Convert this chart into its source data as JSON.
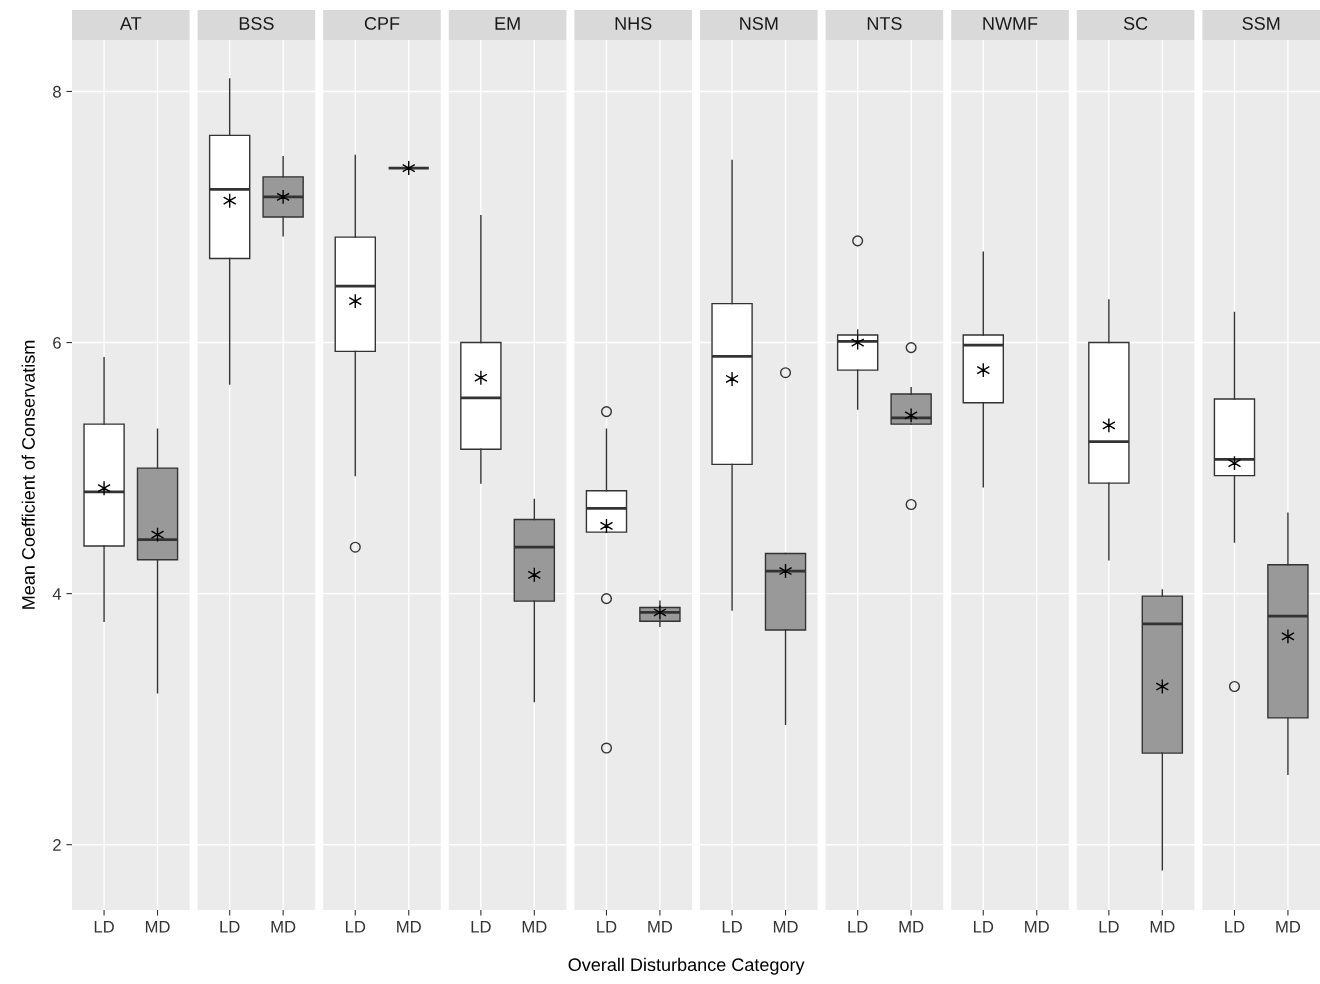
{
  "chart_data": [
    {
      "type": "box",
      "title": "AT",
      "ylabel": "Mean Coefficient of Conservatism",
      "categories": [
        "LD",
        "MD"
      ],
      "colors": [
        "#ffffff",
        "#999999"
      ],
      "ylim": [
        1.48,
        8.41
      ],
      "yticks": [
        2,
        4,
        6,
        8
      ],
      "grid": true,
      "marker": "star",
      "boxes": [
        {
          "low": 3.78,
          "q1": 4.38,
          "median": 4.81,
          "q3": 5.35,
          "high": 5.88,
          "mean": 4.84
        },
        {
          "low": 3.21,
          "q1": 4.27,
          "median": 4.43,
          "q3": 5.0,
          "high": 5.31,
          "mean": 4.47
        }
      ]
    },
    {
      "type": "box",
      "title": "BSS",
      "categories": [
        "LD",
        "MD"
      ],
      "colors": [
        "#ffffff",
        "#999999"
      ],
      "ylim": [
        1.48,
        8.41
      ],
      "yticks": [
        2,
        4,
        6,
        8
      ],
      "tick_labels": "x",
      "grid": true,
      "marker": "star",
      "boxes": [
        {
          "low": 5.67,
          "q1": 6.67,
          "median": 7.22,
          "q3": 7.65,
          "high": 8.1,
          "mean": 7.13
        },
        {
          "low": 6.85,
          "q1": 7.0,
          "median": 7.16,
          "q3": 7.32,
          "high": 7.48,
          "mean": 7.16
        }
      ]
    },
    {
      "type": "box",
      "title": "CPF",
      "categories": [
        "LD",
        "MD"
      ],
      "colors": [
        "#ffffff",
        "#999999"
      ],
      "ylim": [
        1.48,
        8.41
      ],
      "yticks": [
        2,
        4,
        6,
        8
      ],
      "tick_labels": "x",
      "grid": true,
      "marker": "star",
      "boxes": [
        {
          "low": 4.94,
          "q1": 5.93,
          "median": 6.45,
          "q3": 6.84,
          "high": 7.49,
          "mean": 6.33,
          "outliers": [
            4.37
          ]
        },
        {
          "low": 7.39,
          "q1": 7.39,
          "median": 7.39,
          "q3": 7.39,
          "high": 7.39,
          "mean": 7.39
        }
      ]
    },
    {
      "type": "box",
      "title": "EM",
      "categories": [
        "LD",
        "MD"
      ],
      "colors": [
        "#ffffff",
        "#999999"
      ],
      "ylim": [
        1.48,
        8.41
      ],
      "yticks": [
        2,
        4,
        6,
        8
      ],
      "tick_labels": "x",
      "grid": true,
      "marker": "star",
      "boxes": [
        {
          "low": 4.88,
          "q1": 5.15,
          "median": 5.56,
          "q3": 6.0,
          "high": 7.01,
          "mean": 5.72
        },
        {
          "low": 3.14,
          "q1": 3.94,
          "median": 4.37,
          "q3": 4.59,
          "high": 4.75,
          "mean": 4.15
        }
      ]
    },
    {
      "type": "box",
      "title": "NHS",
      "xlabel": "Overall Disturbance Category",
      "categories": [
        "LD",
        "MD"
      ],
      "colors": [
        "#ffffff",
        "#999999"
      ],
      "ylim": [
        1.48,
        8.41
      ],
      "yticks": [
        2,
        4,
        6,
        8
      ],
      "tick_labels": "x",
      "grid": true,
      "marker": "star",
      "boxes": [
        {
          "low": 4.49,
          "q1": 4.49,
          "median": 4.68,
          "q3": 4.82,
          "high": 5.31,
          "mean": 4.54,
          "outliers": [
            5.45,
            3.96,
            2.77
          ]
        },
        {
          "low": 3.74,
          "q1": 3.78,
          "median": 3.85,
          "q3": 3.89,
          "high": 3.94,
          "mean": 3.85
        }
      ]
    },
    {
      "type": "box",
      "title": "NSM",
      "categories": [
        "LD",
        "MD"
      ],
      "colors": [
        "#ffffff",
        "#999999"
      ],
      "ylim": [
        1.48,
        8.41
      ],
      "yticks": [
        2,
        4,
        6,
        8
      ],
      "tick_labels": "x",
      "grid": true,
      "marker": "star",
      "boxes": [
        {
          "low": 3.87,
          "q1": 5.03,
          "median": 5.89,
          "q3": 6.31,
          "high": 7.45,
          "mean": 5.71
        },
        {
          "low": 2.96,
          "q1": 3.71,
          "median": 4.18,
          "q3": 4.32,
          "high": 4.32,
          "mean": 4.18,
          "outliers": [
            5.76
          ]
        }
      ]
    },
    {
      "type": "box",
      "title": "NTS",
      "categories": [
        "LD",
        "MD"
      ],
      "colors": [
        "#ffffff",
        "#999999"
      ],
      "ylim": [
        1.48,
        8.41
      ],
      "yticks": [
        2,
        4,
        6,
        8
      ],
      "tick_labels": "x",
      "grid": true,
      "marker": "star",
      "boxes": [
        {
          "low": 5.47,
          "q1": 5.78,
          "median": 6.01,
          "q3": 6.06,
          "high": 6.1,
          "mean": 6.0,
          "outliers": [
            6.81
          ]
        },
        {
          "low": 5.35,
          "q1": 5.35,
          "median": 5.4,
          "q3": 5.59,
          "high": 5.64,
          "mean": 5.42,
          "outliers": [
            5.96,
            4.71
          ]
        }
      ]
    },
    {
      "type": "box",
      "title": "NWMF",
      "categories": [
        "LD",
        "MD"
      ],
      "colors": [
        "#ffffff",
        "#999999"
      ],
      "ylim": [
        1.48,
        8.41
      ],
      "yticks": [
        2,
        4,
        6,
        8
      ],
      "tick_labels": "x",
      "grid": true,
      "marker": "star",
      "boxes": [
        {
          "low": 4.85,
          "q1": 5.52,
          "median": 5.98,
          "q3": 6.06,
          "high": 6.72,
          "mean": 5.78
        },
        null
      ]
    },
    {
      "type": "box",
      "title": "SC",
      "categories": [
        "LD",
        "MD"
      ],
      "colors": [
        "#ffffff",
        "#999999"
      ],
      "ylim": [
        1.48,
        8.41
      ],
      "yticks": [
        2,
        4,
        6,
        8
      ],
      "tick_labels": "x",
      "grid": true,
      "marker": "star",
      "boxes": [
        {
          "low": 4.27,
          "q1": 4.88,
          "median": 5.21,
          "q3": 6.0,
          "high": 6.34,
          "mean": 5.34
        },
        {
          "low": 1.8,
          "q1": 2.73,
          "median": 3.76,
          "q3": 3.98,
          "high": 4.03,
          "mean": 3.26
        }
      ]
    },
    {
      "type": "box",
      "title": "SSM",
      "categories": [
        "LD",
        "MD"
      ],
      "colors": [
        "#ffffff",
        "#999999"
      ],
      "ylim": [
        1.48,
        8.41
      ],
      "yticks": [
        2,
        4,
        6,
        8
      ],
      "tick_labels": "x",
      "grid": true,
      "marker": "star",
      "boxes": [
        {
          "low": 4.41,
          "q1": 4.94,
          "median": 5.07,
          "q3": 5.55,
          "high": 6.24,
          "mean": 5.04,
          "outliers": [
            3.26
          ]
        },
        {
          "low": 2.56,
          "q1": 3.01,
          "median": 3.82,
          "q3": 4.23,
          "high": 4.64,
          "mean": 3.66
        }
      ]
    }
  ]
}
